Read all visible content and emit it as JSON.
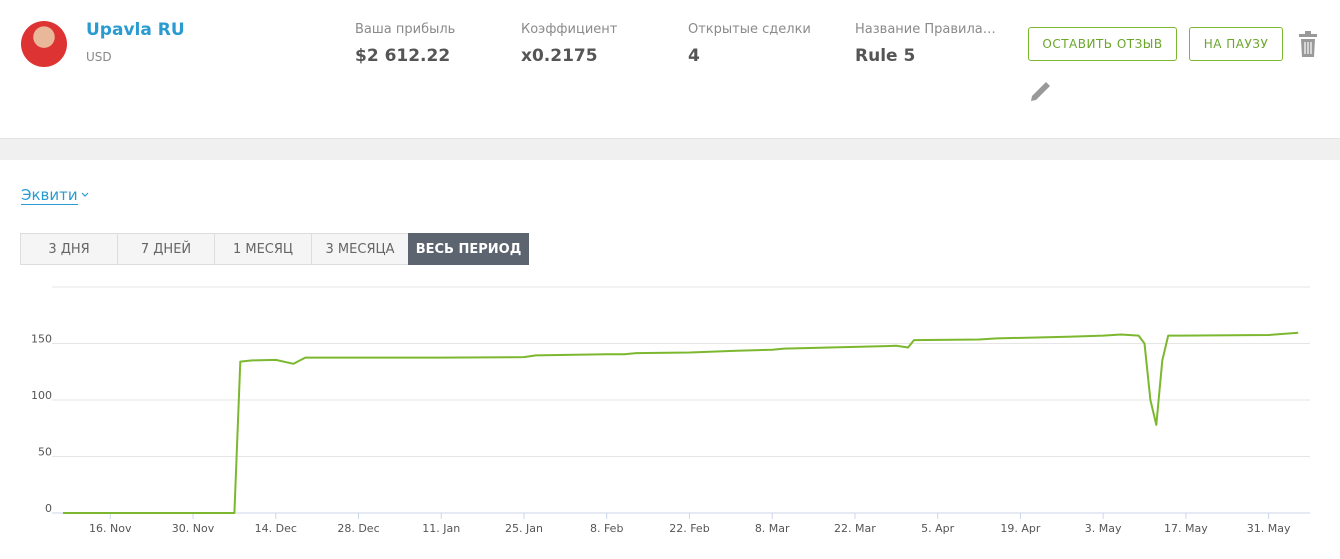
{
  "header": {
    "name": "Upavla RU",
    "currency": "USD",
    "stats": [
      {
        "label": "Ваша прибыль",
        "value": "$2 612.22"
      },
      {
        "label": "Коэффициент",
        "value": "x0.2175"
      },
      {
        "label": "Открытые сделки",
        "value": "4"
      },
      {
        "label": "Название Правила…",
        "value": "Rule 5"
      }
    ],
    "buttons": [
      "ОСТАВИТЬ ОТЗЫВ",
      "НА ПАУЗУ"
    ]
  },
  "equity_selector": "Эквити",
  "tabs": [
    "3 ДНЯ",
    "7 ДНЕЙ",
    "1 МЕСЯЦ",
    "3 МЕСЯЦА",
    "ВЕСЬ ПЕРИОД"
  ],
  "active_tab": 4,
  "chart_data": {
    "type": "line",
    "color": "#7cb82f",
    "grid": true,
    "x": [
      "11-08",
      "12-07",
      "12-08",
      "12-10",
      "12-14",
      "12-17",
      "12-19",
      "12-31",
      "01-11",
      "01-25",
      "01-27",
      "02-08",
      "02-11",
      "02-13",
      "02-22",
      "03-02",
      "03-08",
      "03-10",
      "03-22",
      "03-29",
      "03-31",
      "04-01",
      "04-12",
      "04-15",
      "04-27",
      "05-03",
      "05-06",
      "05-09",
      "05-10",
      "05-11",
      "05-12",
      "05-13",
      "05-14",
      "05-16",
      "05-31",
      "06-05"
    ],
    "values": [
      0,
      0,
      134,
      135,
      135.5,
      132,
      137.5,
      137.5,
      137.5,
      138,
      139.5,
      140.5,
      140.5,
      141.5,
      142,
      143.5,
      144.5,
      145.5,
      147,
      148,
      146.5,
      153,
      153.5,
      154.5,
      156,
      157,
      158,
      157,
      150,
      100,
      78,
      135,
      157,
      157,
      157.5,
      159.5
    ],
    "xlim": [
      "11-08",
      "06-07"
    ],
    "xticks": [
      {
        "value": "11-16",
        "label": "16. Nov"
      },
      {
        "value": "11-30",
        "label": "30. Nov"
      },
      {
        "value": "12-14",
        "label": "14. Dec"
      },
      {
        "value": "12-28",
        "label": "28. Dec"
      },
      {
        "value": "01-11",
        "label": "11. Jan"
      },
      {
        "value": "01-25",
        "label": "25. Jan"
      },
      {
        "value": "02-08",
        "label": "8. Feb"
      },
      {
        "value": "02-22",
        "label": "22. Feb"
      },
      {
        "value": "03-08",
        "label": "8. Mar"
      },
      {
        "value": "03-22",
        "label": "22. Mar"
      },
      {
        "value": "04-05",
        "label": "5. Apr"
      },
      {
        "value": "04-19",
        "label": "19. Apr"
      },
      {
        "value": "05-03",
        "label": "3. May"
      },
      {
        "value": "05-17",
        "label": "17. May"
      },
      {
        "value": "05-31",
        "label": "31. May"
      }
    ],
    "ylim": [
      0,
      200
    ],
    "yticks": [
      0,
      50,
      100,
      150
    ]
  }
}
